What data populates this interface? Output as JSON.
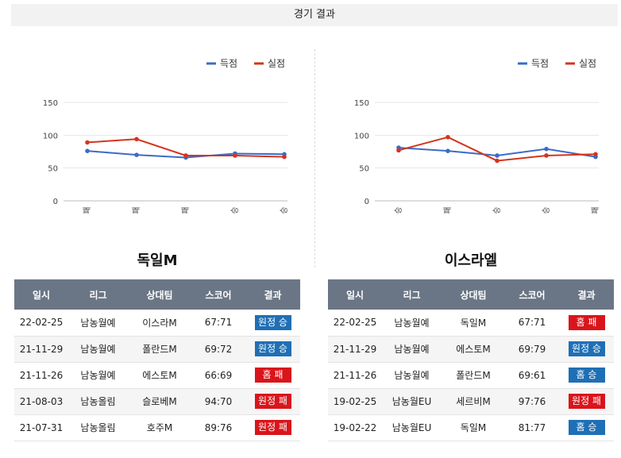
{
  "header": {
    "title": "경기 결과"
  },
  "colors": {
    "scored": "#3a6cc8",
    "conceded": "#d5341d",
    "win_badge": "#1f6fb5",
    "loss_badge": "#d9151b",
    "table_header": "#6a7685"
  },
  "legend": {
    "scored": "득점",
    "conceded": "실점"
  },
  "chart_data": [
    {
      "type": "line",
      "categories": [
        "패",
        "패",
        "패",
        "승",
        "승"
      ],
      "series": [
        {
          "name": "득점",
          "values": [
            76,
            70,
            66,
            72,
            71
          ]
        },
        {
          "name": "실점",
          "values": [
            89,
            94,
            69,
            69,
            67
          ]
        }
      ],
      "yticks": [
        0,
        50,
        100,
        150
      ],
      "ylim": [
        0,
        150
      ],
      "legend_position": "top-right",
      "grid": true
    },
    {
      "type": "line",
      "categories": [
        "승",
        "패",
        "승",
        "승",
        "패"
      ],
      "series": [
        {
          "name": "득점",
          "values": [
            81,
            76,
            69,
            79,
            67
          ]
        },
        {
          "name": "실점",
          "values": [
            77,
            97,
            61,
            69,
            71
          ]
        }
      ],
      "yticks": [
        0,
        50,
        100,
        150
      ],
      "ylim": [
        0,
        150
      ],
      "legend_position": "top-right",
      "grid": true
    }
  ],
  "teams": [
    {
      "name": "독일M",
      "columns": [
        "일시",
        "리그",
        "상대팀",
        "스코어",
        "결과"
      ],
      "rows": [
        {
          "date": "22-02-25",
          "league": "남농월예",
          "opponent": "이스라M",
          "score": "67:71",
          "result": "원정 승",
          "type": "win"
        },
        {
          "date": "21-11-29",
          "league": "남농월예",
          "opponent": "폴란드M",
          "score": "69:72",
          "result": "원정 승",
          "type": "win"
        },
        {
          "date": "21-11-26",
          "league": "남농월예",
          "opponent": "에스토M",
          "score": "66:69",
          "result": "홈 패",
          "type": "loss"
        },
        {
          "date": "21-08-03",
          "league": "남농올림",
          "opponent": "슬로베M",
          "score": "94:70",
          "result": "원정 패",
          "type": "loss"
        },
        {
          "date": "21-07-31",
          "league": "남농올림",
          "opponent": "호주M",
          "score": "89:76",
          "result": "원정 패",
          "type": "loss"
        }
      ]
    },
    {
      "name": "이스라엘",
      "columns": [
        "일시",
        "리그",
        "상대팀",
        "스코어",
        "결과"
      ],
      "rows": [
        {
          "date": "22-02-25",
          "league": "남농월예",
          "opponent": "독일M",
          "score": "67:71",
          "result": "홈 패",
          "type": "loss"
        },
        {
          "date": "21-11-29",
          "league": "남농월예",
          "opponent": "에스토M",
          "score": "69:79",
          "result": "원정 승",
          "type": "win"
        },
        {
          "date": "21-11-26",
          "league": "남농월예",
          "opponent": "폴란드M",
          "score": "69:61",
          "result": "홈 승",
          "type": "win"
        },
        {
          "date": "19-02-25",
          "league": "남농월EU",
          "opponent": "세르비M",
          "score": "97:76",
          "result": "원정 패",
          "type": "loss"
        },
        {
          "date": "19-02-22",
          "league": "남농월EU",
          "opponent": "독일M",
          "score": "81:77",
          "result": "홈 승",
          "type": "win"
        }
      ]
    }
  ]
}
